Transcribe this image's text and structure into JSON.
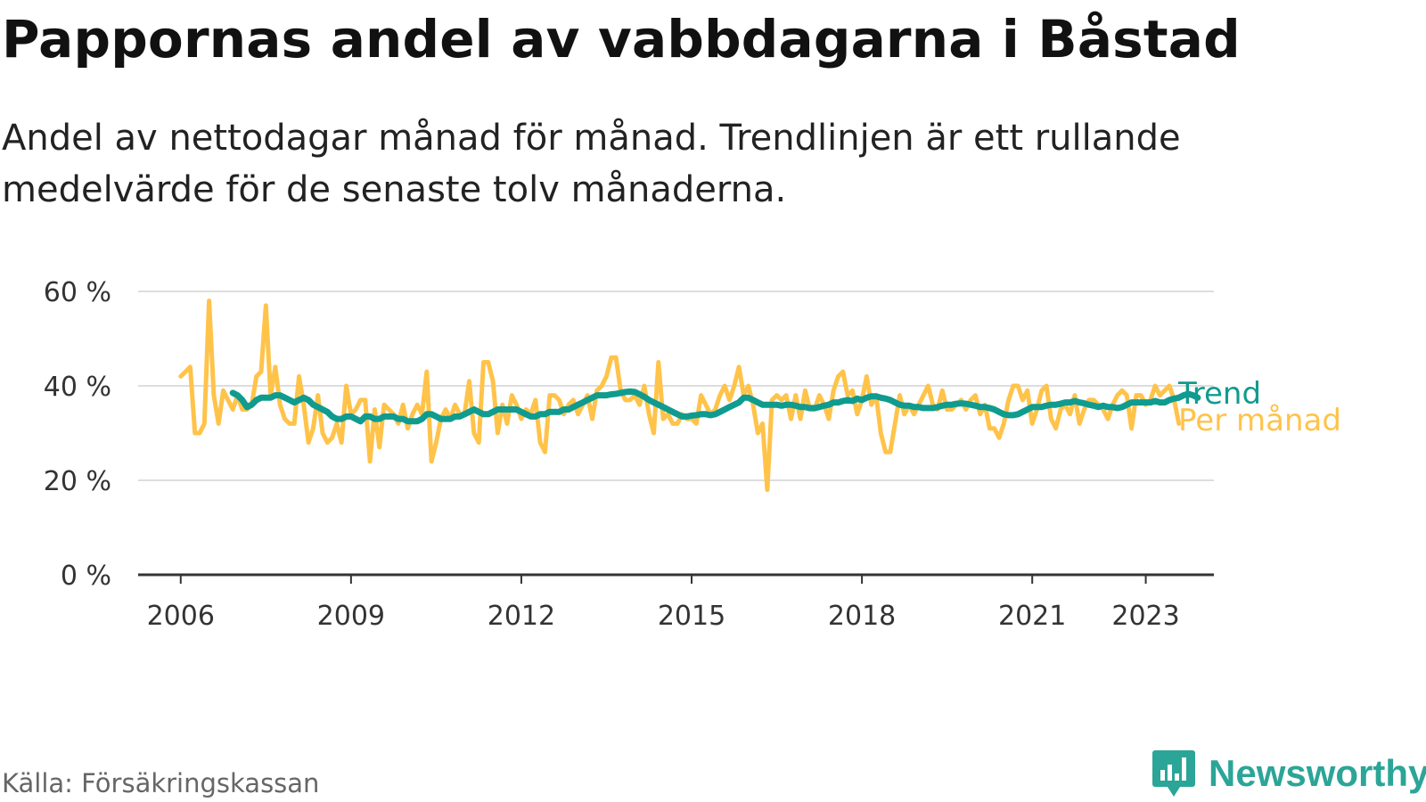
{
  "header": {
    "title": "Pappornas andel av vabbdagarna i Båstad",
    "subtitle": "Andel av nettodagar månad för månad. Trendlinjen är ett rullande medelvärde för de senaste tolv månaderna."
  },
  "footer": {
    "source": "Källa: Försäkringskassan",
    "brand": "Newsworthy"
  },
  "colors": {
    "trend": "#109b8f",
    "monthly": "#ffc34a",
    "grid": "#dddddd",
    "axis": "#333333",
    "brand": "#2ba597"
  },
  "chart_data": {
    "type": "line",
    "title": "Pappornas andel av vabbdagarna i Båstad",
    "subtitle": "Andel av nettodagar månad för månad. Trendlinjen är ett rullande medelvärde för de senaste tolv månaderna.",
    "y_unit": "%",
    "ylim": [
      0,
      60
    ],
    "y_ticks": [
      0,
      20,
      40,
      60
    ],
    "y_tick_labels": [
      "0 %",
      "20 %",
      "40 %",
      "60 %"
    ],
    "x_range": [
      2005.25,
      2024.2
    ],
    "x_ticks": [
      2006,
      2009,
      2012,
      2015,
      2018,
      2021,
      2023
    ],
    "x_tick_labels": [
      "2006",
      "2009",
      "2012",
      "2015",
      "2018",
      "2021",
      "2023"
    ],
    "grid": "horizontal",
    "legend": "direct labels at line ends (right)",
    "series": [
      {
        "name": "Per månad",
        "color": "#ffc34a",
        "x_start": 2006.0,
        "x_step": 0.08333,
        "values": [
          42,
          43,
          44,
          30,
          30,
          32,
          58,
          38,
          32,
          39,
          37,
          35,
          38,
          35,
          35,
          36,
          42,
          43,
          57,
          38,
          44,
          36,
          33,
          32,
          32,
          42,
          36,
          28,
          31,
          38,
          30,
          28,
          29,
          32,
          28,
          40,
          34,
          35,
          37,
          37,
          24,
          35,
          27,
          36,
          35,
          34,
          32,
          36,
          31,
          34,
          36,
          34,
          43,
          24,
          28,
          33,
          35,
          33,
          36,
          34,
          34,
          41,
          30,
          28,
          45,
          45,
          41,
          30,
          36,
          32,
          38,
          36,
          33,
          35,
          34,
          37,
          28,
          26,
          38,
          38,
          37,
          34,
          36,
          37,
          34,
          36,
          38,
          33,
          39,
          40,
          42,
          46,
          46,
          39,
          37,
          37,
          38,
          36,
          40,
          34,
          30,
          45,
          33,
          34,
          32,
          32,
          34,
          33,
          33,
          32,
          38,
          36,
          34,
          35,
          38,
          40,
          37,
          40,
          44,
          38,
          40,
          36,
          30,
          32,
          18,
          37,
          38,
          37,
          38,
          33,
          38,
          33,
          39,
          35,
          35,
          38,
          36,
          33,
          39,
          42,
          43,
          38,
          39,
          34,
          37,
          42,
          36,
          38,
          30,
          26,
          26,
          32,
          38,
          34,
          36,
          34,
          36,
          38,
          40,
          36,
          35,
          39,
          35,
          35,
          36,
          37,
          35,
          37,
          38,
          34,
          36,
          31,
          31,
          29,
          32,
          37,
          40,
          40,
          37,
          39,
          32,
          35,
          39,
          40,
          33,
          31,
          35,
          36,
          34,
          38,
          32,
          35,
          37,
          37,
          36,
          35,
          33,
          36,
          38,
          39,
          38,
          31,
          38,
          38,
          36,
          37,
          40,
          38,
          39,
          40,
          37,
          32
        ]
      },
      {
        "name": "Trend",
        "color": "#109b8f",
        "x_start": 2006.917,
        "x_step": 0.08333,
        "values": [
          38.5,
          38,
          37,
          35.5,
          36,
          37,
          37.5,
          37.5,
          37.5,
          38,
          38,
          37.5,
          37,
          36.5,
          37,
          37.5,
          37,
          36,
          35.5,
          35,
          34.5,
          33.5,
          33,
          33,
          33.5,
          33.5,
          33,
          32.5,
          33.5,
          33.5,
          33,
          33,
          33.5,
          33.5,
          33.5,
          33,
          33,
          32.5,
          32.5,
          32.5,
          33,
          34,
          34,
          33.5,
          33,
          33,
          33,
          33.5,
          33.5,
          34,
          34.5,
          35,
          34.5,
          34,
          34,
          34.5,
          35,
          35,
          35,
          35,
          35,
          34.5,
          34,
          33.5,
          33.5,
          34,
          34,
          34.5,
          34.5,
          34.5,
          35,
          35,
          35.5,
          36,
          36.5,
          37,
          37.5,
          38,
          38,
          38,
          38.2,
          38.3,
          38.5,
          38.7,
          38.8,
          38.7,
          38.2,
          37.7,
          37,
          36.5,
          36,
          35.5,
          35,
          34.5,
          34,
          33.5,
          33.5,
          33.7,
          33.8,
          34,
          34,
          33.8,
          34,
          34.5,
          35,
          35.5,
          36,
          36.5,
          37.5,
          37.5,
          37,
          36.5,
          36,
          36,
          36,
          36,
          35.8,
          36,
          36,
          35.8,
          35.5,
          35.5,
          35.3,
          35.3,
          35.5,
          35.8,
          36,
          36.5,
          36.5,
          36.8,
          37,
          36.8,
          37.3,
          37,
          37.5,
          37.8,
          37.8,
          37.5,
          37.3,
          37,
          36.5,
          36,
          35.8,
          35.8,
          35.5,
          35.5,
          35.3,
          35.3,
          35.3,
          35.5,
          35.8,
          36,
          36,
          36.2,
          36.3,
          36.2,
          36,
          35.8,
          35.5,
          35.5,
          35.3,
          35,
          34.5,
          34,
          33.8,
          33.8,
          34,
          34.5,
          35,
          35.5,
          35.5,
          35.5,
          35.8,
          36,
          36,
          36.2,
          36.5,
          36.5,
          36.8,
          36.5,
          36.3,
          36,
          35.8,
          35.5,
          35.8,
          35.5,
          35.5,
          35.3,
          35.5,
          36,
          36.5,
          36.5,
          36.5,
          36.5,
          36.5,
          36.8,
          36.5,
          36.5,
          37,
          37.3,
          37.5,
          38,
          38.3,
          38,
          37.5
        ]
      }
    ]
  }
}
